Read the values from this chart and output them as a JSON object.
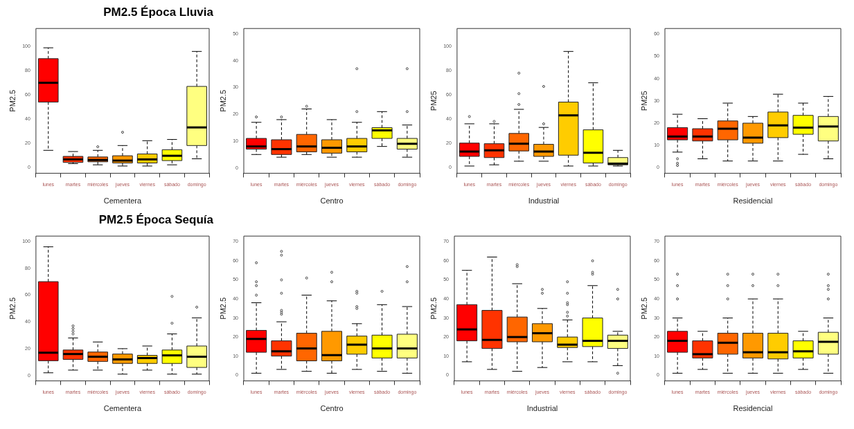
{
  "chart_data": [
    {
      "type": "box",
      "title": "PM2.5 Época  Lluvia",
      "xlabel": "Cementera",
      "ylabel": "PM2.5",
      "categories": [
        "lunes",
        "martes",
        "miércoles",
        "jueves",
        "viernes",
        "sábado",
        "domingo"
      ],
      "colors": [
        "#ff0000",
        "#ff3300",
        "#ff6600",
        "#ff9900",
        "#ffcc00",
        "#ffff00",
        "#ffff80"
      ],
      "ylim": [
        -5,
        115
      ],
      "yticks": [
        0,
        20,
        40,
        60,
        80,
        100
      ],
      "boxes": [
        {
          "low": 14,
          "q1": 54,
          "median": 70,
          "q3": 90,
          "high": 99
        },
        {
          "low": 3,
          "q1": 4,
          "median": 6.5,
          "q3": 9,
          "high": 13
        },
        {
          "low": 2,
          "q1": 4.5,
          "median": 6,
          "q3": 8.5,
          "high": 14,
          "outliers": [
            17
          ]
        },
        {
          "low": 1,
          "q1": 3.5,
          "median": 5.5,
          "q3": 9.5,
          "high": 18,
          "outliers": [
            29
          ]
        },
        {
          "low": 1,
          "q1": 3.5,
          "median": 6.5,
          "q3": 11,
          "high": 22
        },
        {
          "low": 2,
          "q1": 5.5,
          "median": 9.5,
          "q3": 14.5,
          "high": 23
        },
        {
          "low": 7,
          "q1": 18,
          "median": 33,
          "q3": 67,
          "high": 96
        }
      ]
    },
    {
      "type": "box",
      "xlabel": "Centro",
      "ylabel": "PM2.5",
      "categories": [
        "lunes",
        "martes",
        "miércoles",
        "jueves",
        "viernes",
        "sábado",
        "domingo"
      ],
      "colors": [
        "#ff0000",
        "#ff3300",
        "#ff6600",
        "#ff9900",
        "#ffcc00",
        "#ffff00",
        "#ffff80"
      ],
      "ylim": [
        -2,
        52
      ],
      "yticks": [
        0,
        10,
        20,
        30,
        40,
        50
      ],
      "boxes": [
        {
          "low": 5,
          "q1": 7,
          "median": 8,
          "q3": 11,
          "high": 17,
          "outliers": [
            19
          ]
        },
        {
          "low": 4,
          "q1": 5,
          "median": 7,
          "q3": 10.5,
          "high": 18,
          "outliers": [
            19
          ]
        },
        {
          "low": 5,
          "q1": 6,
          "median": 8,
          "q3": 12.5,
          "high": 22,
          "outliers": [
            23
          ]
        },
        {
          "low": 4,
          "q1": 5.5,
          "median": 7.5,
          "q3": 10.5,
          "high": 18
        },
        {
          "low": 4,
          "q1": 6,
          "median": 8,
          "q3": 11,
          "high": 17,
          "outliers": [
            21,
            37
          ]
        },
        {
          "low": 8,
          "q1": 11,
          "median": 14,
          "q3": 15,
          "high": 21
        },
        {
          "low": 4,
          "q1": 7,
          "median": 9,
          "q3": 11,
          "high": 16,
          "outliers": [
            21,
            37
          ]
        }
      ]
    },
    {
      "type": "box",
      "xlabel": "Industrial",
      "ylabel": "PM25",
      "categories": [
        "lunes",
        "martes",
        "miércoles",
        "jueves",
        "viernes",
        "sábado",
        "domingo"
      ],
      "colors": [
        "#ff0000",
        "#ff3300",
        "#ff6600",
        "#ff9900",
        "#ffcc00",
        "#ffff00",
        "#ffff80"
      ],
      "ylim": [
        -5,
        115
      ],
      "yticks": [
        0,
        20,
        40,
        60,
        80,
        100
      ],
      "boxes": [
        {
          "low": 1,
          "q1": 9,
          "median": 13,
          "q3": 20,
          "high": 36,
          "outliers": [
            42
          ]
        },
        {
          "low": 2,
          "q1": 8,
          "median": 14,
          "q3": 19.5,
          "high": 36,
          "outliers": [
            38
          ]
        },
        {
          "low": 5,
          "q1": 13.5,
          "median": 19.5,
          "q3": 28,
          "high": 48,
          "outliers": [
            52,
            61,
            78
          ]
        },
        {
          "low": 5,
          "q1": 9,
          "median": 13,
          "q3": 19,
          "high": 33,
          "outliers": [
            36,
            67
          ]
        },
        {
          "low": 1,
          "q1": 10,
          "median": 43,
          "q3": 54,
          "high": 96
        },
        {
          "low": 1,
          "q1": 3.5,
          "median": 12,
          "q3": 31,
          "high": 70
        },
        {
          "low": 1,
          "q1": 2,
          "median": 3,
          "q3": 8,
          "high": 14
        }
      ]
    },
    {
      "type": "box",
      "xlabel": "Residencial",
      "ylabel": "PM25",
      "categories": [
        "lunes",
        "martes",
        "miércoles",
        "jueves",
        "viernes",
        "sábado",
        "domingo"
      ],
      "colors": [
        "#ff0000",
        "#ff3300",
        "#ff6600",
        "#ff9900",
        "#ffcc00",
        "#ffff00",
        "#ffff80"
      ],
      "ylim": [
        -2.5,
        62.5
      ],
      "yticks": [
        0,
        10,
        20,
        30,
        40,
        50,
        60
      ],
      "boxes": [
        {
          "low": 7,
          "q1": 12.5,
          "median": 14,
          "q3": 18,
          "high": 24,
          "outliers": [
            1,
            2,
            4
          ]
        },
        {
          "low": 4,
          "q1": 12,
          "median": 14,
          "q3": 17.5,
          "high": 22
        },
        {
          "low": 3,
          "q1": 12.5,
          "median": 17.5,
          "q3": 21,
          "high": 29
        },
        {
          "low": 3,
          "q1": 11,
          "median": 13.5,
          "q3": 20,
          "high": 23
        },
        {
          "low": 3,
          "q1": 13.5,
          "median": 19,
          "q3": 25,
          "high": 33
        },
        {
          "low": 6,
          "q1": 15,
          "median": 18,
          "q3": 23.5,
          "high": 29
        },
        {
          "low": 4,
          "q1": 12,
          "median": 18.5,
          "q3": 23,
          "high": 32
        }
      ]
    },
    {
      "type": "box",
      "title": "PM2.5 Época  Sequía",
      "xlabel": "Cementera",
      "ylabel": "PM2.5",
      "categories": [
        "lunes",
        "martes",
        "miércoles",
        "jueves",
        "viernes",
        "sábado",
        "domingo"
      ],
      "colors": [
        "#ff0000",
        "#ff3300",
        "#ff6600",
        "#ff9900",
        "#ffcc00",
        "#ffff00",
        "#ffff80"
      ],
      "ylim": [
        -4,
        104
      ],
      "yticks": [
        0,
        20,
        40,
        60,
        80,
        100
      ],
      "boxes": [
        {
          "low": 2,
          "q1": 11,
          "median": 17,
          "q3": 70,
          "high": 96
        },
        {
          "low": 4,
          "q1": 12,
          "median": 16,
          "q3": 19,
          "high": 28,
          "outliers": [
            31,
            33,
            35,
            37
          ]
        },
        {
          "low": 4,
          "q1": 10.5,
          "median": 14,
          "q3": 17.5,
          "high": 25
        },
        {
          "low": 1,
          "q1": 9,
          "median": 12,
          "q3": 16,
          "high": 20
        },
        {
          "low": 4,
          "q1": 9,
          "median": 13,
          "q3": 15,
          "high": 22
        },
        {
          "low": 1,
          "q1": 9,
          "median": 15,
          "q3": 19,
          "high": 31,
          "outliers": [
            39,
            59
          ]
        },
        {
          "low": 1,
          "q1": 6,
          "median": 14,
          "q3": 22,
          "high": 43,
          "outliers": [
            51
          ]
        }
      ]
    },
    {
      "type": "box",
      "xlabel": "Centro",
      "ylabel": "PM2.5",
      "categories": [
        "lunes",
        "martes",
        "miércoles",
        "jueves",
        "viernes",
        "sábado",
        "domingo"
      ],
      "colors": [
        "#ff0000",
        "#ff3300",
        "#ff6600",
        "#ff9900",
        "#ffcc00",
        "#ffff00",
        "#ffff80"
      ],
      "ylim": [
        -3,
        73
      ],
      "yticks": [
        0,
        10,
        20,
        30,
        40,
        50,
        60,
        70
      ],
      "boxes": [
        {
          "low": 1,
          "q1": 12,
          "median": 19,
          "q3": 23.5,
          "high": 38,
          "outliers": [
            42,
            47,
            49,
            59
          ]
        },
        {
          "low": 3,
          "q1": 10,
          "median": 12.5,
          "q3": 18,
          "high": 28,
          "outliers": [
            32,
            33,
            34,
            43,
            50,
            63,
            65
          ]
        },
        {
          "low": 2,
          "q1": 7.5,
          "median": 14,
          "q3": 22,
          "high": 42,
          "outliers": [
            51
          ]
        },
        {
          "low": 1,
          "q1": 7.5,
          "median": 10.5,
          "q3": 23,
          "high": 39,
          "outliers": [
            49,
            54
          ]
        },
        {
          "low": 3,
          "q1": 11,
          "median": 16,
          "q3": 20.5,
          "high": 27,
          "outliers": [
            35,
            36,
            43,
            44
          ]
        },
        {
          "low": 2,
          "q1": 9,
          "median": 14,
          "q3": 21,
          "high": 37,
          "outliers": [
            44
          ]
        },
        {
          "low": 1,
          "q1": 9,
          "median": 14,
          "q3": 21.5,
          "high": 36,
          "outliers": [
            49,
            57
          ]
        }
      ]
    },
    {
      "type": "box",
      "xlabel": "Industrial",
      "ylabel": "PM2.5",
      "categories": [
        "lunes",
        "martes",
        "miércoles",
        "jueves",
        "viernes",
        "sábado",
        "domingo"
      ],
      "colors": [
        "#ff0000",
        "#ff3300",
        "#ff6600",
        "#ff9900",
        "#ffcc00",
        "#ffff00",
        "#ffff80"
      ],
      "ylim": [
        -3,
        73
      ],
      "yticks": [
        0,
        10,
        20,
        30,
        40,
        50,
        60,
        70
      ],
      "boxes": [
        {
          "low": 7,
          "q1": 18,
          "median": 24,
          "q3": 37,
          "high": 55
        },
        {
          "low": 3,
          "q1": 14,
          "median": 18.5,
          "q3": 34,
          "high": 62
        },
        {
          "low": 2,
          "q1": 17.5,
          "median": 20,
          "q3": 30.5,
          "high": 48,
          "outliers": [
            57,
            58
          ]
        },
        {
          "low": 4,
          "q1": 17.5,
          "median": 22,
          "q3": 27,
          "high": 35,
          "outliers": [
            43,
            45
          ]
        },
        {
          "low": 7,
          "q1": 14.5,
          "median": 16,
          "q3": 20,
          "high": 29,
          "outliers": [
            31,
            33,
            37,
            38,
            43,
            49
          ]
        },
        {
          "low": 7,
          "q1": 15,
          "median": 18,
          "q3": 30,
          "high": 47,
          "outliers": [
            53,
            54,
            60
          ]
        },
        {
          "low": 5,
          "q1": 14,
          "median": 18,
          "q3": 21,
          "high": 23,
          "outliers": [
            1,
            40,
            45
          ]
        }
      ]
    },
    {
      "type": "box",
      "xlabel": "Residencial",
      "ylabel": "PM2.5",
      "categories": [
        "lunes",
        "martes",
        "miércoles",
        "jueves",
        "viernes",
        "sábado",
        "domingo"
      ],
      "colors": [
        "#ff0000",
        "#ff3300",
        "#ff6600",
        "#ff9900",
        "#ffcc00",
        "#ffff00",
        "#ffff80"
      ],
      "ylim": [
        -3,
        73
      ],
      "yticks": [
        0,
        10,
        20,
        30,
        40,
        50,
        60,
        70
      ],
      "boxes": [
        {
          "low": 1,
          "q1": 12,
          "median": 18,
          "q3": 23,
          "high": 30,
          "outliers": [
            40,
            47,
            53
          ]
        },
        {
          "low": 3,
          "q1": 9,
          "median": 11,
          "q3": 18,
          "high": 23
        },
        {
          "low": 1,
          "q1": 11,
          "median": 17,
          "q3": 22,
          "high": 30,
          "outliers": [
            40,
            47,
            53
          ]
        },
        {
          "low": 1,
          "q1": 9,
          "median": 12,
          "q3": 22,
          "high": 40,
          "outliers": [
            47,
            53
          ]
        },
        {
          "low": 1,
          "q1": 8.5,
          "median": 12,
          "q3": 22,
          "high": 40,
          "outliers": [
            47,
            53
          ]
        },
        {
          "low": 3,
          "q1": 9,
          "median": 12.5,
          "q3": 18,
          "high": 23
        },
        {
          "low": 1,
          "q1": 11,
          "median": 17.5,
          "q3": 22.5,
          "high": 30,
          "outliers": [
            40,
            45,
            47,
            53
          ]
        }
      ]
    }
  ]
}
